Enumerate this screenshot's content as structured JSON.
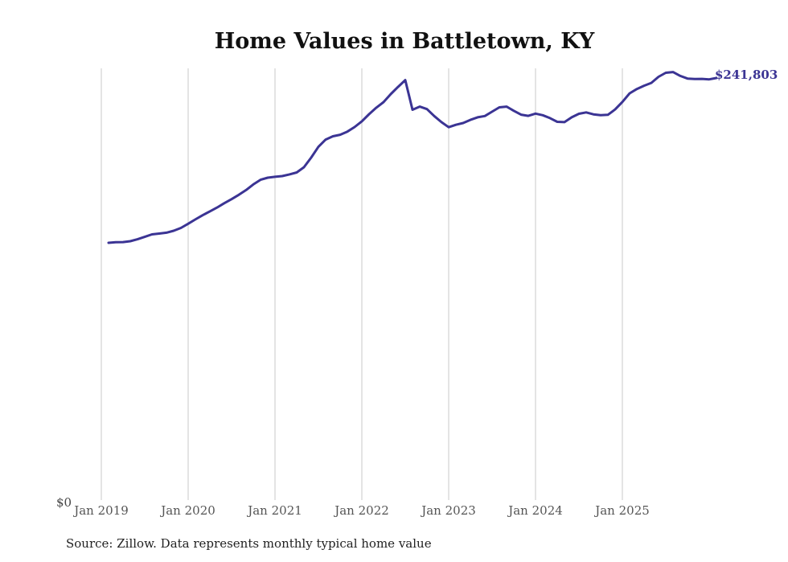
{
  "chart_data": {
    "type": "line",
    "title": "Home Values in Battletown, KY",
    "xlabel": "",
    "ylabel": "",
    "source_note": "Source: Zillow. Data represents monthly typical home value",
    "x_ticks": [
      "Jan 2019",
      "Jan 2020",
      "Jan 2021",
      "Jan 2022",
      "Jan 2023",
      "Jan 2024",
      "Jan 2025"
    ],
    "y_ticks": [
      "$0"
    ],
    "ylim": [
      0,
      247000
    ],
    "grid": "vertical",
    "line_color": "#3b3494",
    "end_label": "$241,803",
    "series": [
      {
        "name": "Typical home value",
        "start": "2019-02",
        "values": [
          147400,
          147700,
          147800,
          148300,
          149400,
          150800,
          152200,
          152700,
          153200,
          154300,
          155900,
          158300,
          160800,
          163200,
          165400,
          167600,
          170100,
          172400,
          174900,
          177600,
          180800,
          183500,
          184700,
          185200,
          185600,
          186600,
          187700,
          190700,
          196200,
          202400,
          206500,
          208400,
          209300,
          211100,
          213700,
          217000,
          221100,
          224800,
          228000,
          232600,
          236700,
          240600,
          223600,
          225400,
          224000,
          220000,
          216500,
          213600,
          215000,
          216000,
          217800,
          219300,
          220000,
          222500,
          225000,
          225400,
          223000,
          220800,
          220100,
          221400,
          220500,
          218800,
          216700,
          216500,
          219300,
          221300,
          222100,
          221000,
          220500,
          220700,
          223800,
          228100,
          233000,
          235500,
          237400,
          239000,
          242500,
          244800,
          245200,
          243000,
          241500,
          241200,
          241300,
          241000,
          241803
        ]
      }
    ]
  }
}
